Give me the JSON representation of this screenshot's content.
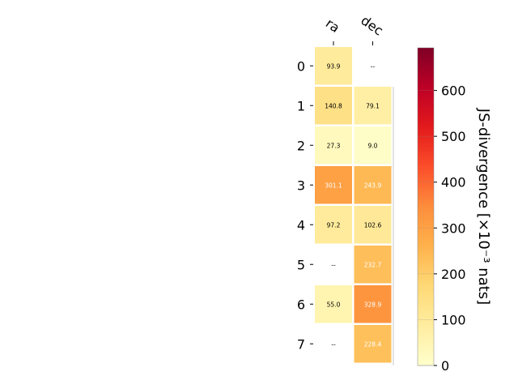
{
  "chart_data": {
    "type": "heatmap",
    "title": "",
    "columns": [
      "ra",
      "dec"
    ],
    "rows": [
      "0",
      "1",
      "2",
      "3",
      "4",
      "5",
      "6",
      "7"
    ],
    "values": [
      [
        93.9,
        null
      ],
      [
        140.8,
        79.1
      ],
      [
        27.3,
        9.0
      ],
      [
        301.1,
        243.9
      ],
      [
        97.2,
        102.6
      ],
      [
        null,
        232.7
      ],
      [
        55.0,
        328.9
      ],
      [
        null,
        228.4
      ]
    ],
    "cell_labels": [
      [
        "93.9",
        "--"
      ],
      [
        "140.8",
        "79.1"
      ],
      [
        "27.3",
        "9.0"
      ],
      [
        "301.1",
        "243.9"
      ],
      [
        "97.2",
        "102.6"
      ],
      [
        "--",
        "232.7"
      ],
      [
        "55.0",
        "328.9"
      ],
      [
        "--",
        "228.4"
      ]
    ],
    "colorbar": {
      "label": "JS-divergence [×10⁻³ nats]",
      "range": [
        0,
        693
      ],
      "ticks": [
        0,
        100,
        200,
        300,
        400,
        500,
        600
      ],
      "colormap": "YlOrRd"
    }
  }
}
